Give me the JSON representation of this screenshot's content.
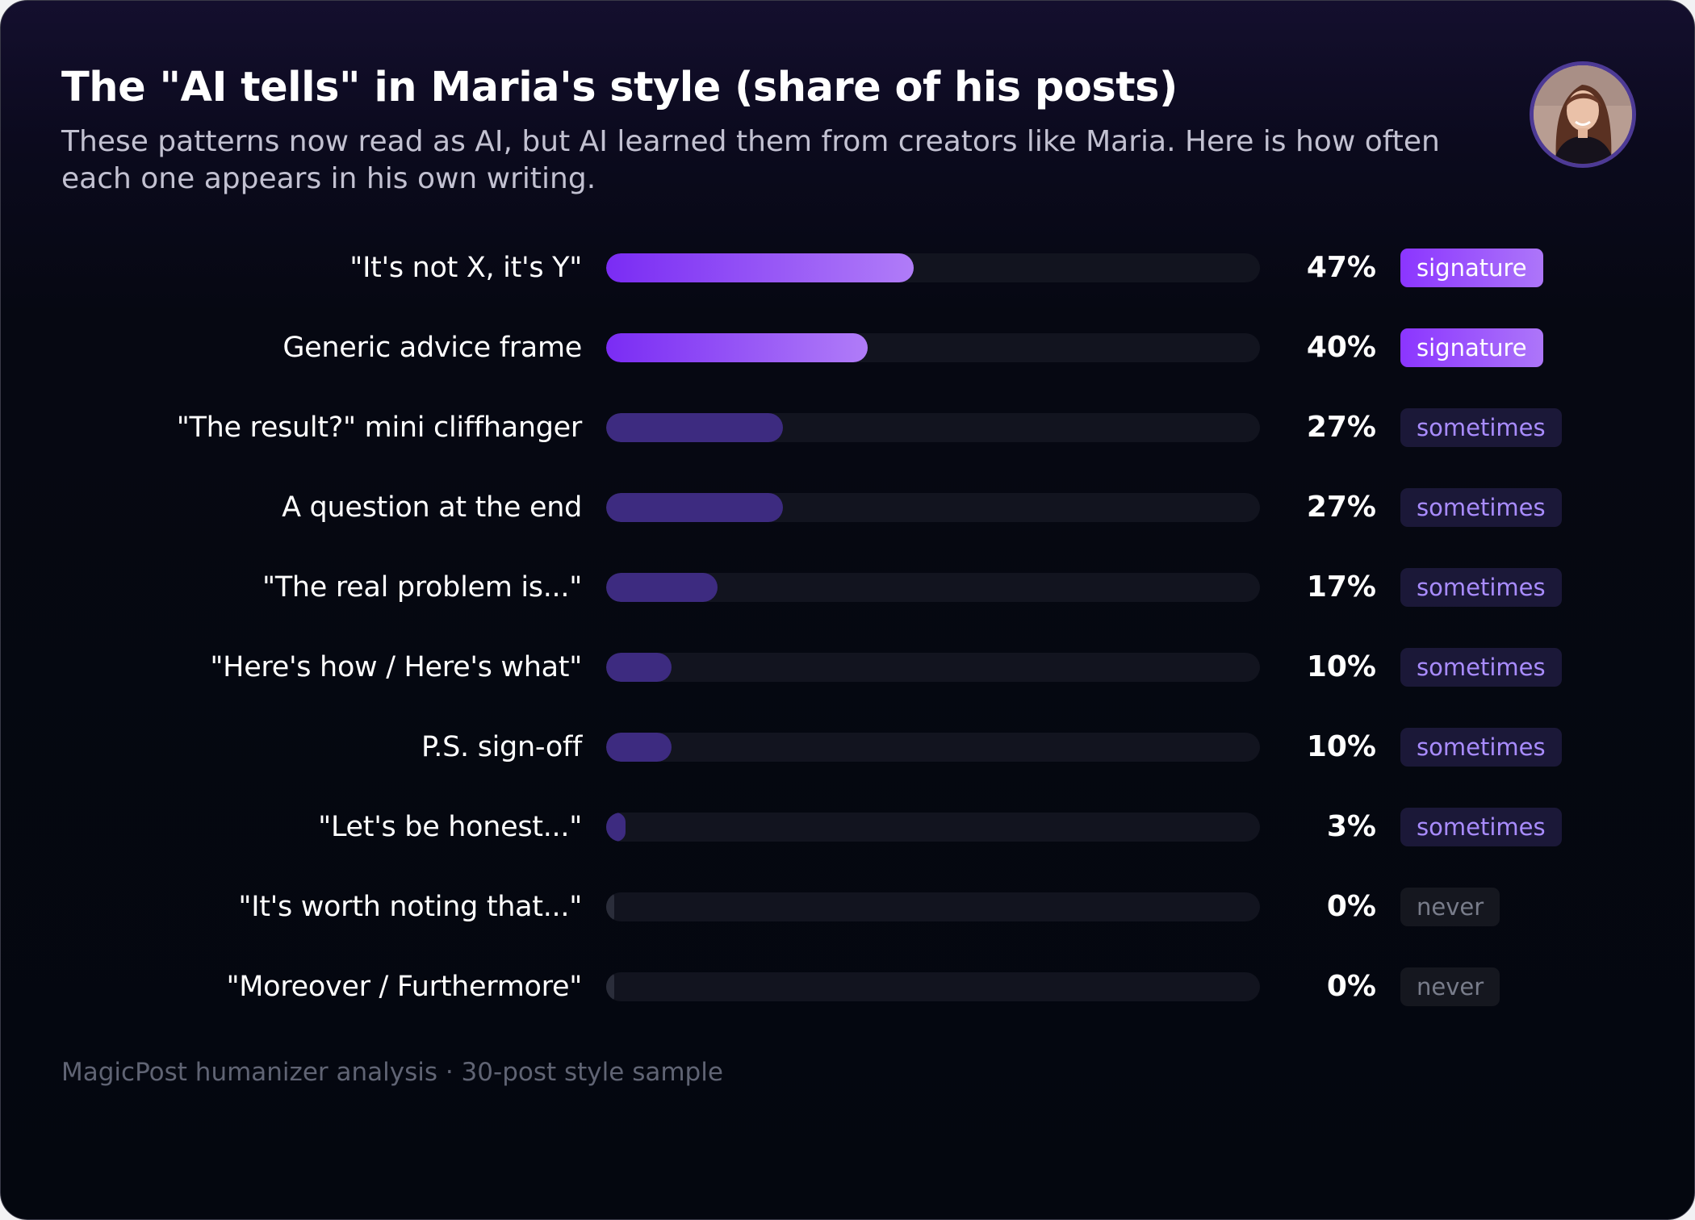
{
  "header": {
    "title": "The \"AI tells\" in Maria's style (share of his posts)",
    "subtitle": "These patterns now read as AI, but AI learned them from creators like Maria. Here is how often each one appears in his own writing."
  },
  "footer": {
    "source": "MagicPost humanizer analysis · 30-post style sample"
  },
  "colors": {
    "signature_fill": [
      "#7a2cf4",
      "#b07cf8"
    ],
    "sometimes_fill": "#3d2b80",
    "never_fill": "#2a2d3a",
    "track": "#12141f"
  },
  "chart_data": {
    "type": "bar",
    "orientation": "horizontal",
    "unit": "%",
    "xlim": [
      0,
      100
    ],
    "grid": false,
    "title": "The \"AI tells\" in Maria's style (share of his posts)",
    "categories": [
      "\"It's not X, it's Y\"",
      "Generic advice frame",
      "\"The result?\" mini cliffhanger",
      "A question at the end",
      "\"The real problem is...\"",
      "\"Here's how / Here's what\"",
      "P.S. sign-off",
      "\"Let's be honest...\"",
      "\"It's worth noting that...\"",
      "\"Moreover / Furthermore\""
    ],
    "values": [
      47,
      40,
      27,
      27,
      17,
      10,
      10,
      3,
      0,
      0
    ],
    "value_labels": [
      "47%",
      "40%",
      "27%",
      "27%",
      "17%",
      "10%",
      "10%",
      "3%",
      "0%",
      "0%"
    ],
    "frequency_tags": [
      "signature",
      "signature",
      "sometimes",
      "sometimes",
      "sometimes",
      "sometimes",
      "sometimes",
      "sometimes",
      "never",
      "never"
    ]
  }
}
